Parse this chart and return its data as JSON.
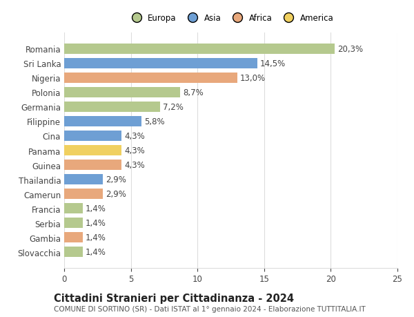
{
  "categories": [
    "Slovacchia",
    "Gambia",
    "Serbia",
    "Francia",
    "Camerun",
    "Thailandia",
    "Guinea",
    "Panama",
    "Cina",
    "Filippine",
    "Germania",
    "Polonia",
    "Nigeria",
    "Sri Lanka",
    "Romania"
  ],
  "values": [
    1.4,
    1.4,
    1.4,
    1.4,
    2.9,
    2.9,
    4.3,
    4.3,
    4.3,
    5.8,
    7.2,
    8.7,
    13.0,
    14.5,
    20.3
  ],
  "colors": [
    "#b5c98e",
    "#e8a87c",
    "#b5c98e",
    "#b5c98e",
    "#e8a87c",
    "#6e9fd4",
    "#e8a87c",
    "#f0d060",
    "#6e9fd4",
    "#6e9fd4",
    "#b5c98e",
    "#b5c98e",
    "#e8a87c",
    "#6e9fd4",
    "#b5c98e"
  ],
  "labels": [
    "1,4%",
    "1,4%",
    "1,4%",
    "1,4%",
    "2,9%",
    "2,9%",
    "4,3%",
    "4,3%",
    "4,3%",
    "5,8%",
    "7,2%",
    "8,7%",
    "13,0%",
    "14,5%",
    "20,3%"
  ],
  "legend": [
    {
      "label": "Europa",
      "color": "#b5c98e"
    },
    {
      "label": "Asia",
      "color": "#6e9fd4"
    },
    {
      "label": "Africa",
      "color": "#e8a87c"
    },
    {
      "label": "America",
      "color": "#f0d060"
    }
  ],
  "xlim": [
    0,
    25
  ],
  "xticks": [
    0,
    5,
    10,
    15,
    20,
    25
  ],
  "title": "Cittadini Stranieri per Cittadinanza - 2024",
  "subtitle": "COMUNE DI SORTINO (SR) - Dati ISTAT al 1° gennaio 2024 - Elaborazione TUTTITALIA.IT",
  "bar_height": 0.72,
  "background_color": "#ffffff",
  "grid_color": "#dddddd",
  "label_fontsize": 8.5,
  "tick_fontsize": 8.5,
  "title_fontsize": 10.5,
  "subtitle_fontsize": 7.5
}
